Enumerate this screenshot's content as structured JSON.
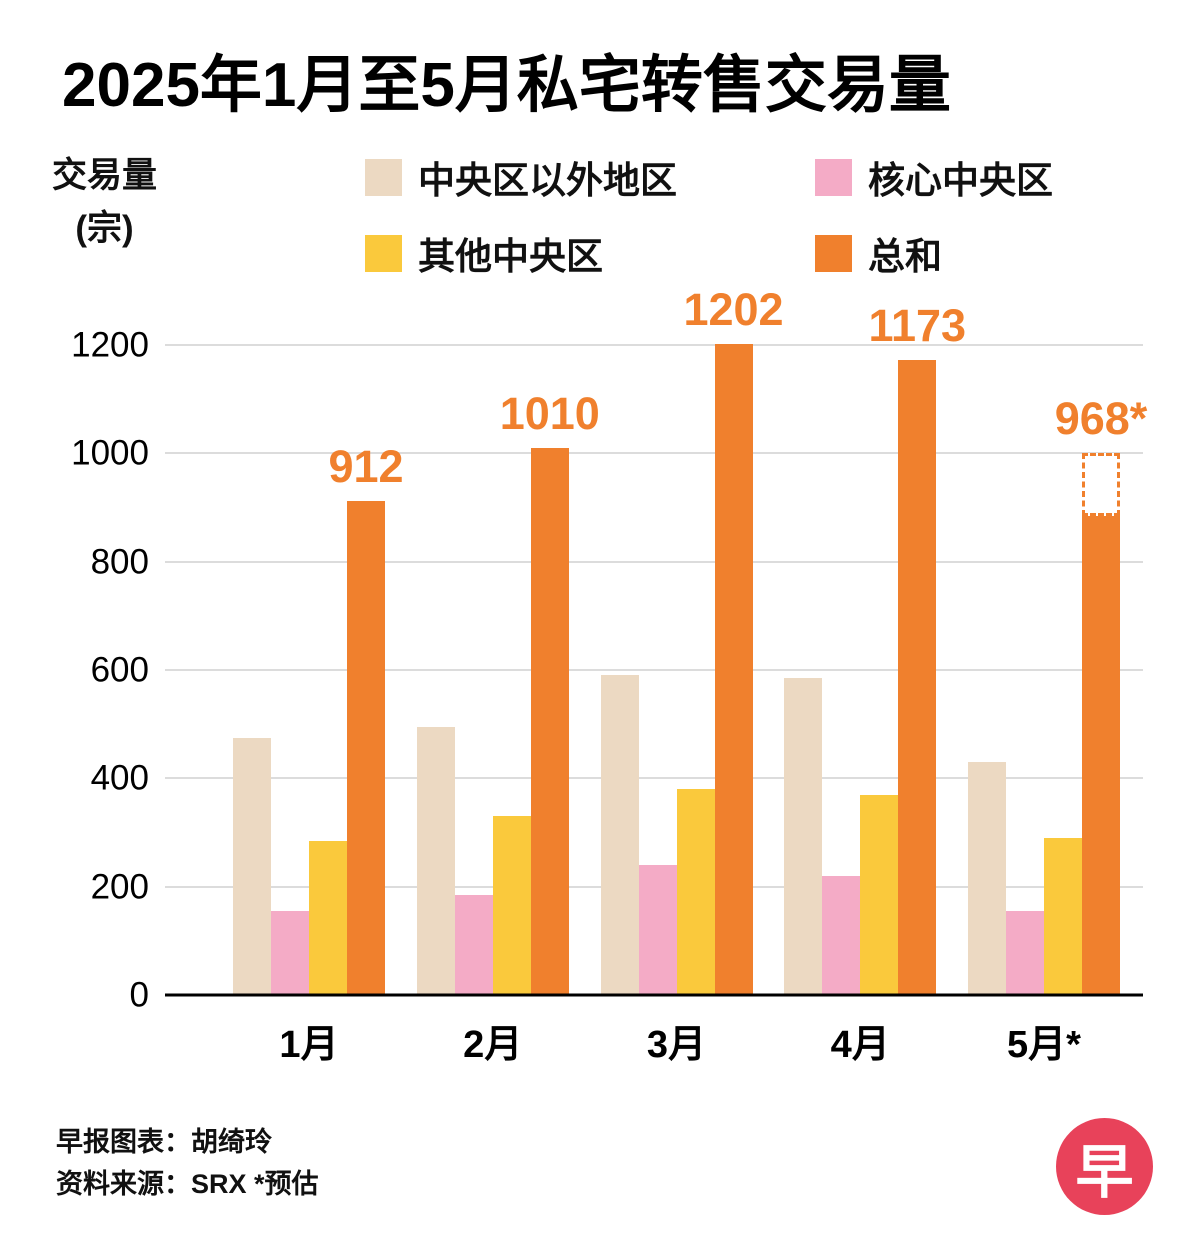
{
  "title": "2025年1月至5月私宅转售交易量",
  "y_axis": {
    "line1": "交易量",
    "line2": "(宗)"
  },
  "legend": [
    {
      "key": "outside-central",
      "label": "中央区以外地区",
      "color": "#ECD9C2"
    },
    {
      "key": "core-central",
      "label": "核心中央区",
      "color": "#F4ABC6"
    },
    {
      "key": "rest-central",
      "label": "其他中央区",
      "color": "#FAC93C"
    },
    {
      "key": "total",
      "label": "总和",
      "color": "#F0802D"
    }
  ],
  "footer": {
    "line1": "早报图表：胡绮玲",
    "line2": "资料来源：SRX    *预估",
    "logo_char": "早",
    "logo_bg": "#E8425A"
  },
  "chart_data": {
    "type": "bar",
    "title": "2025年1月至5月私宅转售交易量",
    "ylabel": "交易量 (宗)",
    "xlabel": "",
    "ylim": [
      0,
      1200
    ],
    "yticks": [
      0,
      200,
      400,
      600,
      800,
      1000,
      1200
    ],
    "grid": true,
    "legend_position": "top",
    "categories": [
      "1月",
      "2月",
      "3月",
      "4月",
      "5月*"
    ],
    "series": [
      {
        "key": "outside-central",
        "name": "中央区以外地区",
        "color": "#ECD9C2",
        "values": [
          475,
          495,
          590,
          585,
          430
        ]
      },
      {
        "key": "core-central",
        "name": "核心中央区",
        "color": "#F4ABC6",
        "values": [
          155,
          185,
          240,
          220,
          155
        ]
      },
      {
        "key": "rest-central",
        "name": "其他中央区",
        "color": "#FAC93C",
        "values": [
          285,
          330,
          380,
          370,
          290
        ]
      },
      {
        "key": "total",
        "name": "总和",
        "color": "#F0802D",
        "values": [
          912,
          1010,
          1202,
          1173,
          968
        ]
      }
    ],
    "total_labels": [
      "912",
      "1010",
      "1202",
      "1173",
      "968*"
    ],
    "estimated_month_index": 4,
    "estimate_note": "*预估",
    "estimate_band": {
      "solid_top": 885,
      "dashed_top": 1000
    },
    "accent_color": "#F0802D"
  }
}
